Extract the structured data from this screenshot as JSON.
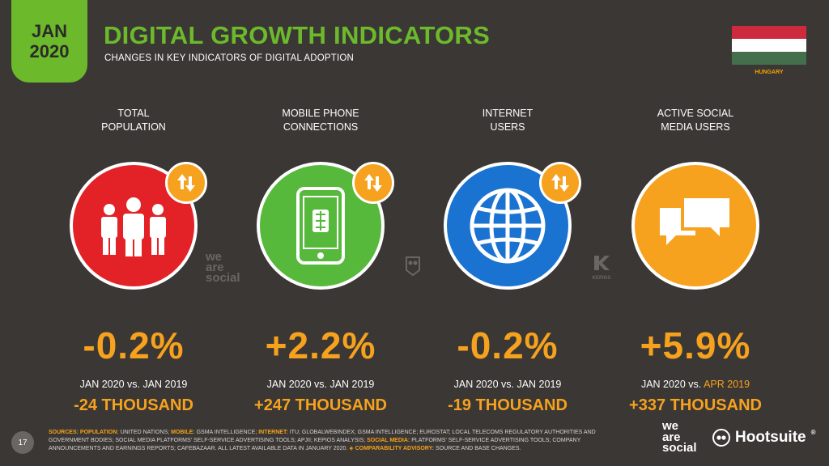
{
  "header": {
    "month": "JAN",
    "year": "2020",
    "title": "DIGITAL GROWTH INDICATORS",
    "subtitle": "CHANGES IN KEY INDICATORS OF DIGITAL ADOPTION",
    "country": "HUNGARY",
    "flag_colors": [
      "#cd2a3e",
      "#ffffff",
      "#436f4d"
    ]
  },
  "indicators": [
    {
      "label_line1": "TOTAL",
      "label_line2": "POPULATION",
      "icon": "people-icon",
      "color": "#e32227",
      "percent": "-0.2%",
      "compare_prefix": "JAN 2020 vs.",
      "compare_ref": "JAN 2019",
      "absolute": "-24 THOUSAND"
    },
    {
      "label_line1": "MOBILE PHONE",
      "label_line2": "CONNECTIONS",
      "icon": "mobile-phone-icon",
      "color": "#56b93b",
      "percent": "+2.2%",
      "compare_prefix": "JAN 2020 vs.",
      "compare_ref": "JAN 2019",
      "absolute": "+247 THOUSAND"
    },
    {
      "label_line1": "INTERNET",
      "label_line2": "USERS",
      "icon": "globe-icon",
      "color": "#1b73d1",
      "percent": "-0.2%",
      "compare_prefix": "JAN 2020 vs.",
      "compare_ref": "JAN 2019",
      "absolute": "-19 THOUSAND"
    },
    {
      "label_line1": "ACTIVE SOCIAL",
      "label_line2": "MEDIA USERS",
      "icon": "speech-bubbles-icon",
      "color": "#f6a21e",
      "percent": "+5.9%",
      "compare_prefix": "JAN 2020 vs.",
      "compare_ref": "APR 2019",
      "absolute": "+337 THOUSAND"
    }
  ],
  "watermarks": {
    "was_line1": "we",
    "was_line2": "are",
    "was_line3": "social",
    "kepios": "KEPIOS"
  },
  "footer": {
    "page_number": "17",
    "sources_label": "SOURCES:",
    "pop_label": "POPULATION:",
    "pop_text": "UNITED NATIONS;",
    "mobile_label": "MOBILE:",
    "mobile_text": "GSMA INTELLIGENCE;",
    "internet_label": "INTERNET:",
    "internet_text": "ITU; GLOBALWEBINDEX; GSMA INTELLIGENCE; EUROSTAT; LOCAL TELECOMS REGULATORY AUTHORITIES AND GOVERNMENT BODIES; SOCIAL MEDIA PLATFORMS' SELF-SERVICE ADVERTISING TOOLS; APJII; KEPIOS ANALYSIS;",
    "social_label": "SOCIAL MEDIA:",
    "social_text": "PLATFORMS' SELF-SERVICE ADVERTISING TOOLS; COMPANY ANNOUNCEMENTS AND EARNINGS REPORTS; CAFEBAZAAR. ALL LATEST AVAILABLE DATA IN JANUARY 2020.",
    "advisory_label": "◈ COMPARABILITY ADVISORY:",
    "advisory_text": "SOURCE AND BASE CHANGES.",
    "logo_was_1": "we",
    "logo_was_2": "are",
    "logo_was_3": "social",
    "logo_hootsuite": "Hootsuite",
    "logo_hootsuite_tm": "®"
  }
}
